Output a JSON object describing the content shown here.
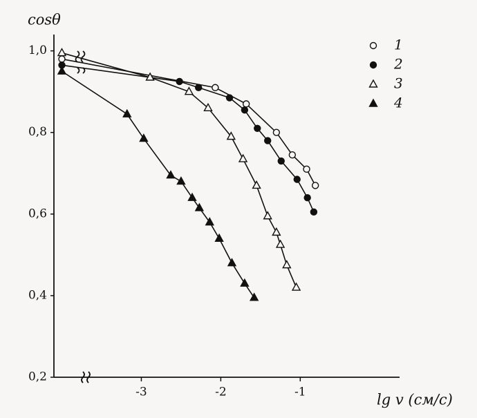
{
  "chart_data": {
    "type": "scatter-line",
    "y_label": "cosθ",
    "x_label": "lg v (см/c)",
    "xlim": [
      -4.1,
      0.25
    ],
    "ylim": [
      0.2,
      1.04
    ],
    "xticks": [
      -3,
      -2,
      -1
    ],
    "yticks": [
      {
        "value": 0.2,
        "label": "0,2"
      },
      {
        "value": 0.4,
        "label": "0,4"
      },
      {
        "value": 0.6,
        "label": "0,6"
      },
      {
        "value": 0.8,
        "label": "0,8"
      },
      {
        "value": 1.0,
        "label": "1,0"
      }
    ],
    "legend": "upper right",
    "series": [
      {
        "name": "1",
        "color": "#111111",
        "marker": "circle-open",
        "x": [
          -4.0,
          -2.07,
          -1.68,
          -1.3,
          -1.1,
          -0.92,
          -0.81
        ],
        "values": [
          0.98,
          0.91,
          0.87,
          0.8,
          0.745,
          0.71,
          0.67
        ]
      },
      {
        "name": "2",
        "color": "#111111",
        "marker": "circle-filled",
        "x": [
          -4.0,
          -2.52,
          -2.28,
          -1.89,
          -1.7,
          -1.54,
          -1.41,
          -1.24,
          -1.04,
          -0.91,
          -0.83
        ],
        "values": [
          0.965,
          0.925,
          0.91,
          0.885,
          0.855,
          0.81,
          0.78,
          0.73,
          0.685,
          0.64,
          0.605
        ]
      },
      {
        "name": "3",
        "color": "#111111",
        "marker": "triangle-open",
        "x": [
          -4.0,
          -2.89,
          -2.4,
          -2.16,
          -1.87,
          -1.72,
          -1.55,
          -1.41,
          -1.3,
          -1.25,
          -1.17,
          -1.05
        ],
        "values": [
          0.995,
          0.935,
          0.9,
          0.86,
          0.79,
          0.735,
          0.67,
          0.595,
          0.555,
          0.525,
          0.475,
          0.42
        ]
      },
      {
        "name": "4",
        "color": "#111111",
        "marker": "triangle-filled",
        "x": [
          -4.0,
          -3.18,
          -2.97,
          -2.63,
          -2.5,
          -2.36,
          -2.27,
          -2.14,
          -2.02,
          -1.86,
          -1.7,
          -1.58
        ],
        "values": [
          0.95,
          0.845,
          0.785,
          0.695,
          0.68,
          0.64,
          0.615,
          0.58,
          0.54,
          0.48,
          0.43,
          0.395
        ]
      }
    ]
  }
}
